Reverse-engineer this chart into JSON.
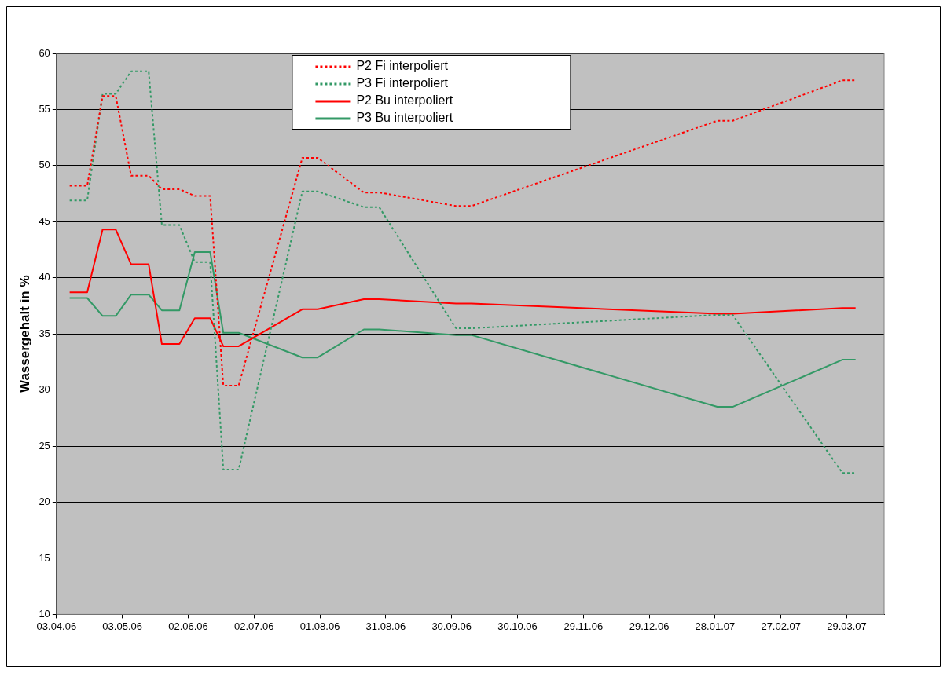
{
  "chart_data": {
    "type": "line",
    "ylabel": "Wassergehalt in %",
    "ylim": [
      10,
      60
    ],
    "yticks": [
      10,
      15,
      20,
      25,
      30,
      35,
      40,
      45,
      50,
      55,
      60
    ],
    "xlim": [
      "2006-04-03",
      "2007-04-15"
    ],
    "xticks": [
      {
        "value": "2006-04-03",
        "label": "03.04.06"
      },
      {
        "value": "2006-05-03",
        "label": "03.05.06"
      },
      {
        "value": "2006-06-02",
        "label": "02.06.06"
      },
      {
        "value": "2006-07-02",
        "label": "02.07.06"
      },
      {
        "value": "2006-08-01",
        "label": "01.08.06"
      },
      {
        "value": "2006-08-31",
        "label": "31.08.06"
      },
      {
        "value": "2006-09-30",
        "label": "30.09.06"
      },
      {
        "value": "2006-10-30",
        "label": "30.10.06"
      },
      {
        "value": "2006-11-29",
        "label": "29.11.06"
      },
      {
        "value": "2006-12-29",
        "label": "29.12.06"
      },
      {
        "value": "2007-01-28",
        "label": "28.01.07"
      },
      {
        "value": "2007-02-27",
        "label": "27.02.07"
      },
      {
        "value": "2007-03-29",
        "label": "29.03.07"
      }
    ],
    "x": [
      "2006-04-09",
      "2006-04-17",
      "2006-04-24",
      "2006-04-30",
      "2006-05-07",
      "2006-05-15",
      "2006-05-21",
      "2006-05-29",
      "2006-06-05",
      "2006-06-12",
      "2006-06-18",
      "2006-06-25",
      "2006-07-24",
      "2006-07-31",
      "2006-08-21",
      "2006-08-28",
      "2006-10-02",
      "2006-10-09",
      "2007-01-29",
      "2007-02-05",
      "2007-03-27",
      "2007-04-02"
    ],
    "grid": "y",
    "legend": "top",
    "series": [
      {
        "name": "P2 Fi interpoliert",
        "color": "#ff0000",
        "line_style": "dotted",
        "values": [
          48.2,
          48.2,
          56.2,
          56.2,
          49.1,
          49.1,
          47.9,
          47.9,
          47.3,
          47.3,
          30.4,
          30.4,
          50.7,
          50.7,
          47.6,
          47.6,
          46.4,
          46.4,
          54,
          54,
          57.6,
          57.6
        ]
      },
      {
        "name": "P3 Fi interpoliert",
        "color": "#339966",
        "line_style": "dotted",
        "values": [
          46.9,
          46.9,
          56.4,
          56.4,
          58.4,
          58.4,
          44.7,
          44.7,
          41.4,
          41.4,
          22.9,
          22.9,
          47.7,
          47.7,
          46.3,
          46.3,
          35.5,
          35.5,
          36.7,
          36.7,
          22.6,
          22.6
        ]
      },
      {
        "name": "P2 Bu interpoliert",
        "color": "#ff0000",
        "line_style": "solid",
        "values": [
          38.7,
          38.7,
          44.3,
          44.3,
          41.2,
          41.2,
          34.1,
          34.1,
          36.4,
          36.4,
          33.9,
          33.9,
          37.2,
          37.2,
          38.1,
          38.1,
          37.7,
          37.7,
          36.8,
          36.8,
          37.3,
          37.3
        ]
      },
      {
        "name": "P3 Bu interpoliert",
        "color": "#339966",
        "line_style": "solid",
        "values": [
          38.2,
          38.2,
          36.6,
          36.6,
          38.5,
          38.5,
          37.1,
          37.1,
          42.3,
          42.3,
          35.1,
          35.1,
          32.9,
          32.9,
          35.4,
          35.4,
          34.9,
          34.9,
          28.5,
          28.5,
          32.7,
          32.7
        ]
      }
    ]
  }
}
